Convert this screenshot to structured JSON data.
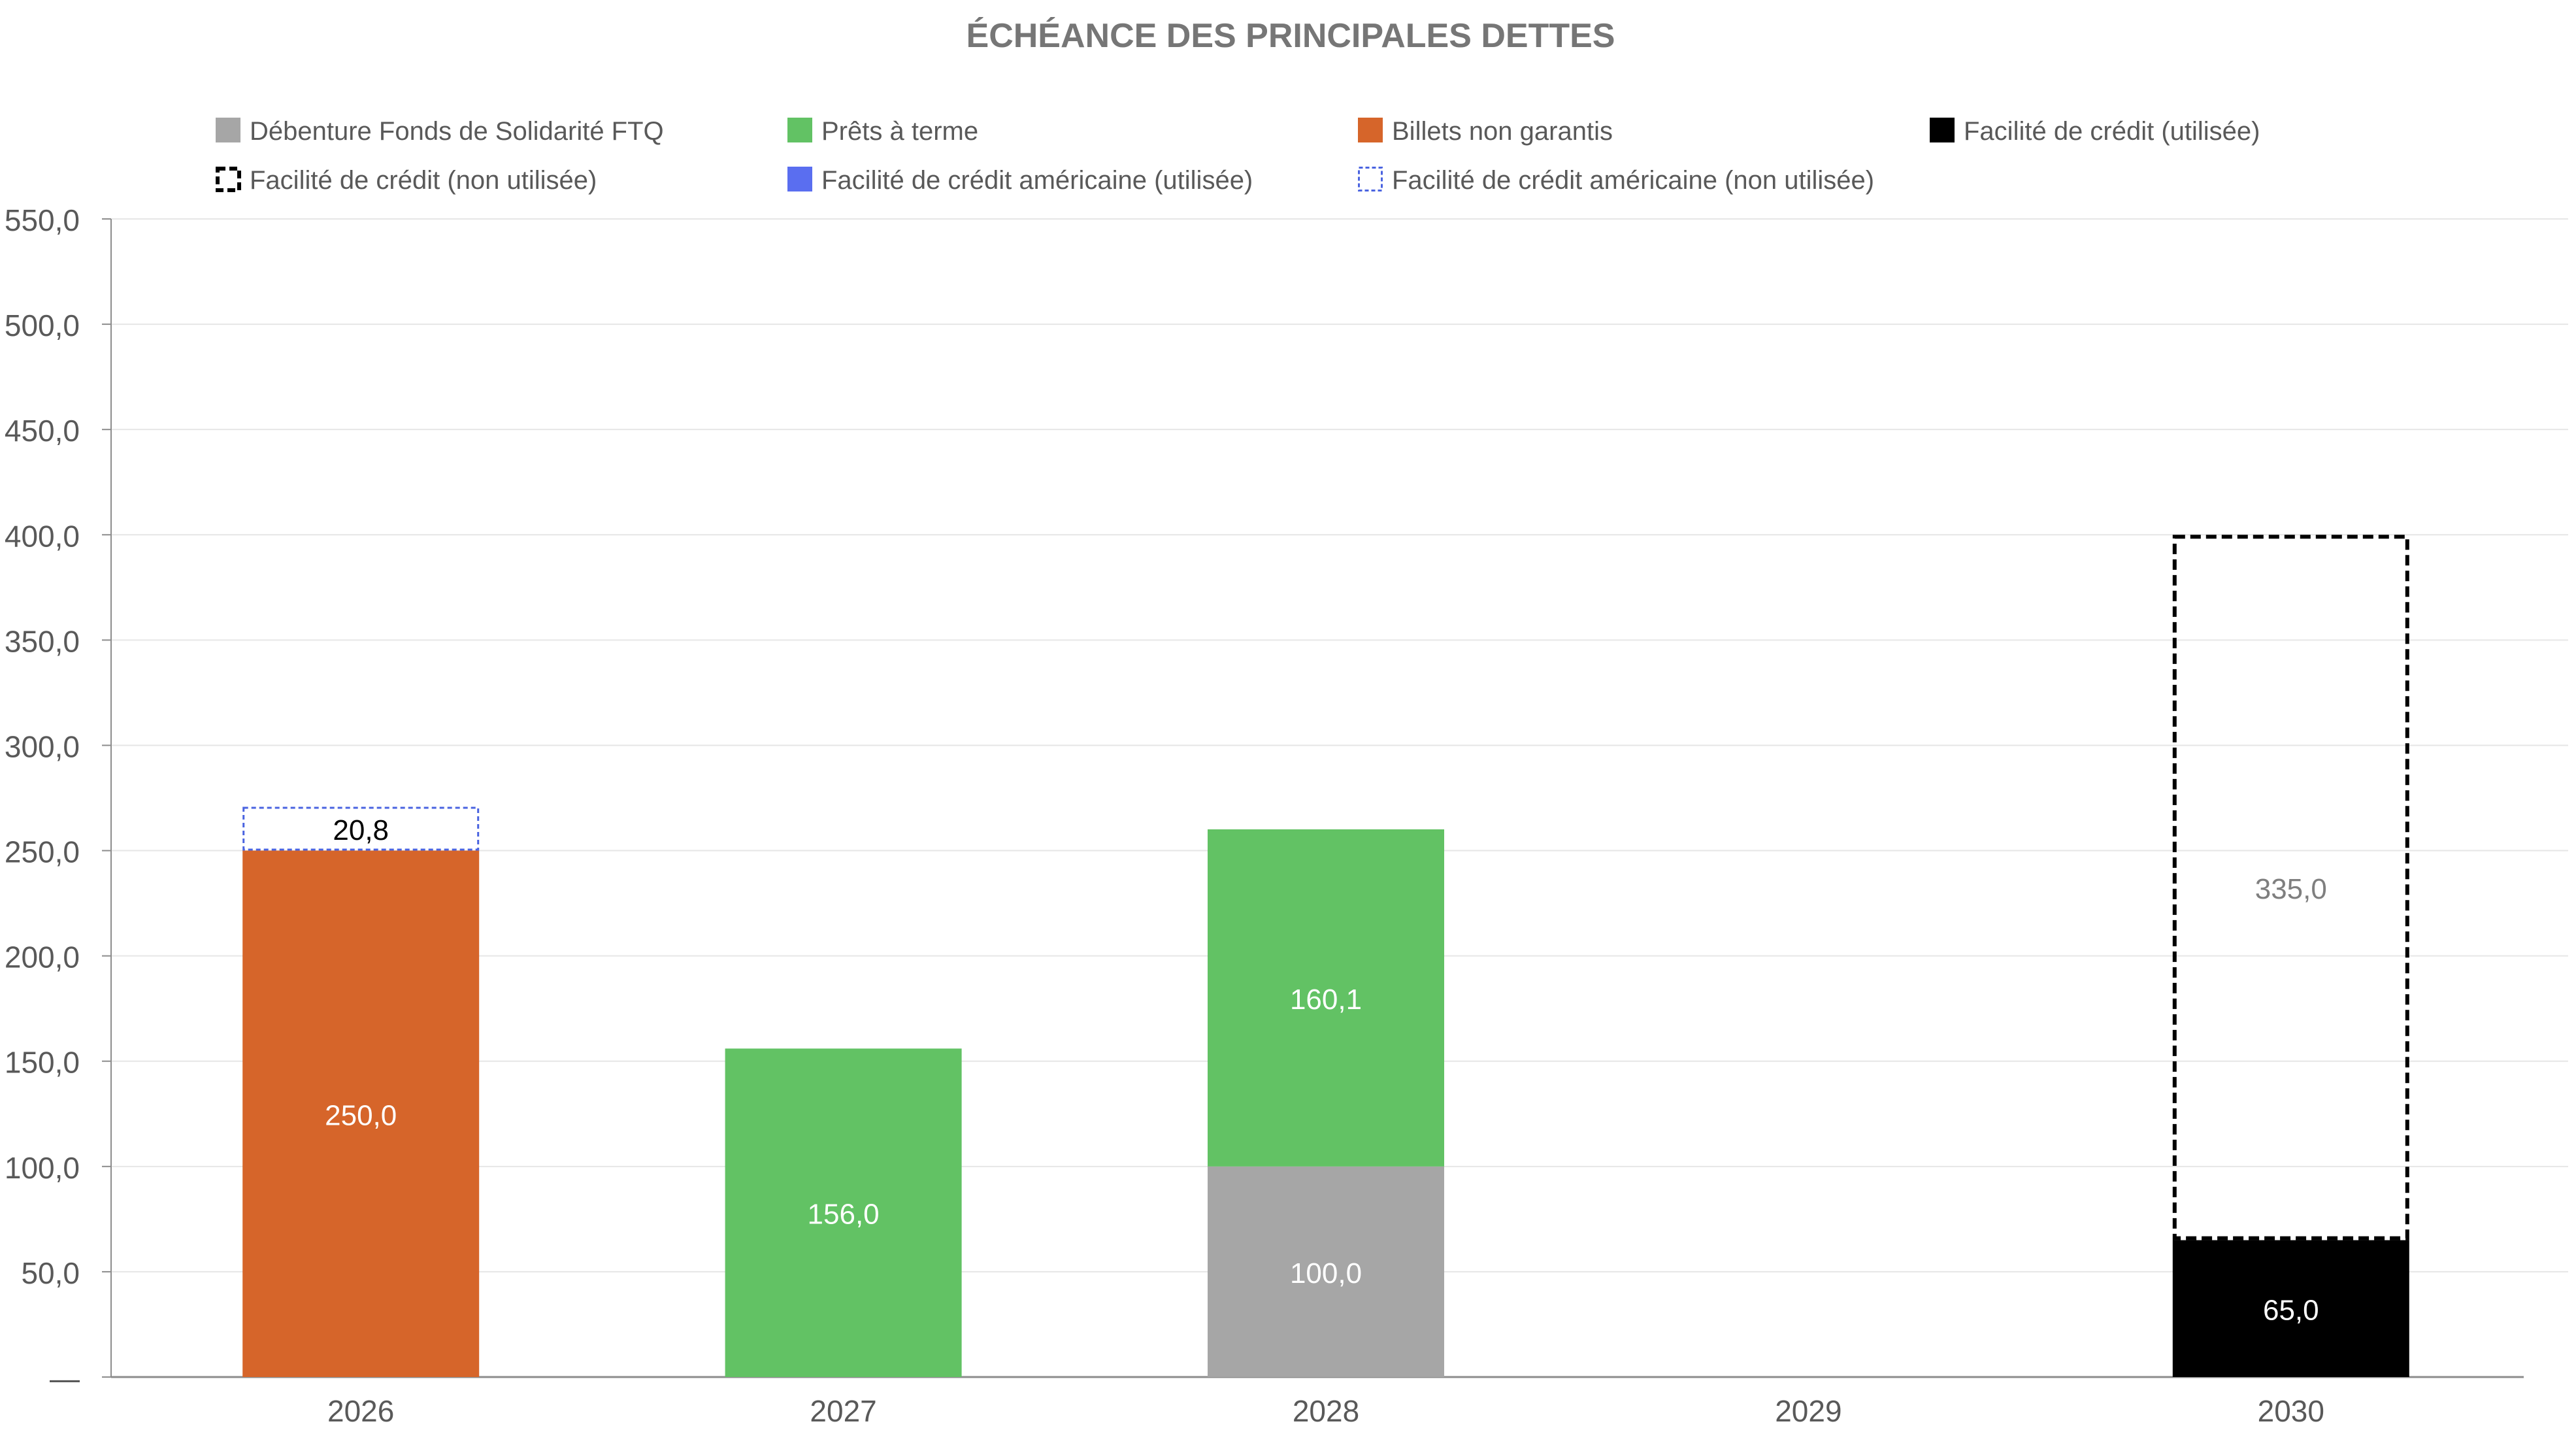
{
  "chart_data": {
    "type": "bar",
    "stacked": true,
    "title": "ÉCHÉANCE DES PRINCIPALES DETTES",
    "xlabel": "",
    "ylabel": "",
    "categories": [
      "2026",
      "2027",
      "2028",
      "2029",
      "2030"
    ],
    "ylim": [
      0,
      550
    ],
    "yticks": [
      0,
      50,
      100,
      150,
      200,
      250,
      300,
      350,
      400,
      450,
      500,
      550
    ],
    "ytick_labels": [
      "—",
      "50,0",
      "100,0",
      "150,0",
      "200,0",
      "250,0",
      "300,0",
      "350,0",
      "400,0",
      "450,0",
      "500,0",
      "550,0"
    ],
    "grid": true,
    "legend_position": "top",
    "series": [
      {
        "name": "Débenture Fonds de Solidarité FTQ",
        "color": "#a6a6a6",
        "style": "solid",
        "values": [
          0,
          0,
          100.0,
          0,
          0
        ],
        "labels": [
          "",
          "",
          "100,0",
          "",
          ""
        ],
        "label_color": "#ffffff"
      },
      {
        "name": "Prêts à terme",
        "color": "#62c264",
        "style": "solid",
        "values": [
          0,
          156.0,
          160.1,
          0,
          0
        ],
        "labels": [
          "",
          "156,0",
          "160,1",
          "",
          ""
        ],
        "label_color": "#ffffff"
      },
      {
        "name": "Billets non garantis",
        "color": "#d6652a",
        "style": "solid",
        "values": [
          250.0,
          0,
          0,
          0,
          0
        ],
        "labels": [
          "250,0",
          "",
          "",
          "",
          ""
        ],
        "label_color": "#ffffff"
      },
      {
        "name": "Facilité de crédit (utilisée)",
        "color": "#000000",
        "style": "solid",
        "values": [
          0,
          0,
          0,
          0,
          65.0
        ],
        "labels": [
          "",
          "",
          "",
          "",
          "65,0"
        ],
        "label_color": "#ffffff"
      },
      {
        "name": "Facilité de crédit (non utilisée)",
        "color": "#000000",
        "style": "dashed-outline",
        "values": [
          0,
          0,
          0,
          0,
          335.0
        ],
        "labels": [
          "",
          "",
          "",
          "",
          "335,0"
        ],
        "label_color": "#7f7f7f"
      },
      {
        "name": "Facilité de crédit américaine (utilisée)",
        "color": "#5a6ef0",
        "style": "solid",
        "values": [
          0,
          0,
          0,
          0,
          0
        ],
        "labels": [
          "",
          "",
          "",
          "",
          ""
        ],
        "label_color": "#ffffff"
      },
      {
        "name": "Facilité de crédit américaine (non utilisée)",
        "color": "#4a63e0",
        "style": "dotted-outline",
        "values": [
          20.8,
          0,
          0,
          0,
          0
        ],
        "labels": [
          "20,8",
          "",
          "",
          "",
          ""
        ],
        "label_color": "#000000"
      }
    ]
  },
  "colors": {
    "title": "#767676",
    "axis_text": "#595959",
    "legend_text": "#595959",
    "gridline": "#e6e6e6",
    "axis_line": "#8c8c8c"
  }
}
